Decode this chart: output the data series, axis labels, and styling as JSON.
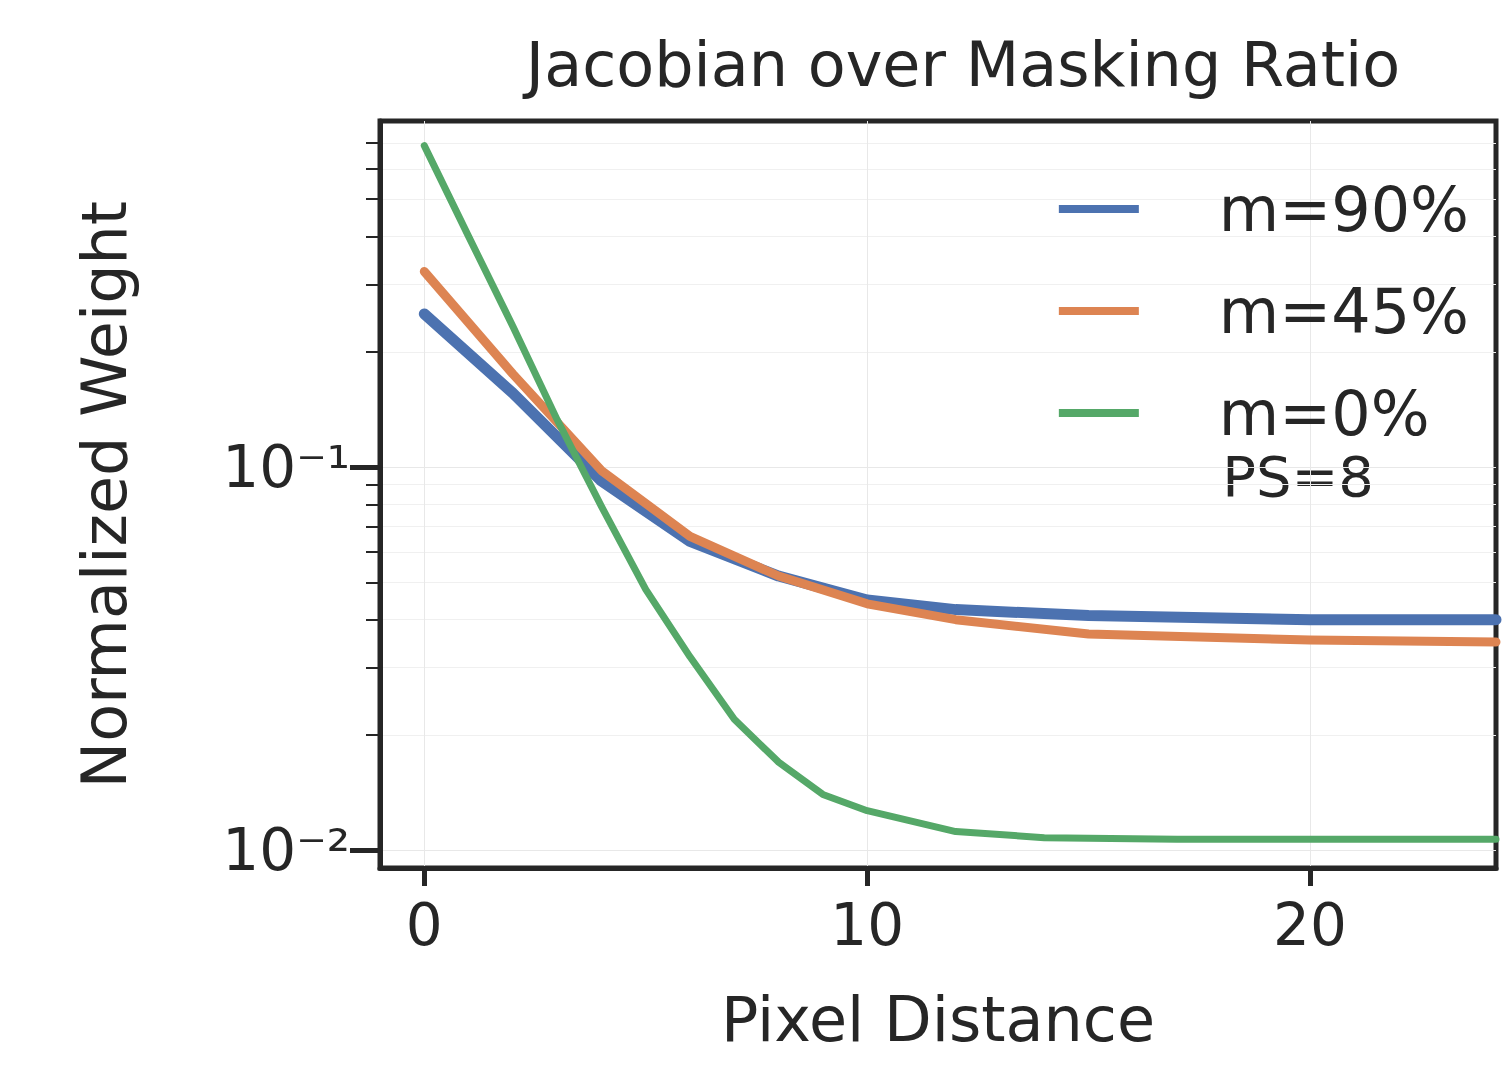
{
  "chart_data": {
    "type": "line",
    "title": "Jacobian over Masking Ratio",
    "xlabel": "Pixel Distance",
    "ylabel": "Normalized Weight",
    "log": "y",
    "grid": true,
    "legend": "top right",
    "line_style": "solid",
    "marker": "none",
    "xlim": [
      -1,
      24.2
    ],
    "xticks": [
      0,
      10,
      20
    ],
    "ylim": [
      0.009,
      0.8
    ],
    "yticks": [
      {
        "value": 0.01,
        "label": "10⁻²"
      },
      {
        "value": 0.1,
        "label": "10⁻¹"
      }
    ],
    "annotations": [
      "PS=8"
    ],
    "series": [
      {
        "name": "m=90%",
        "color": "#4c72b0",
        "x": [
          0,
          2,
          4,
          6,
          8,
          10,
          12,
          15,
          20,
          24.2
        ],
        "values": [
          0.251,
          0.156,
          0.092,
          0.064,
          0.052,
          0.045,
          0.0425,
          0.041,
          0.04,
          0.04
        ]
      },
      {
        "name": "m=45%",
        "color": "#dd8452",
        "x": [
          0,
          2,
          4,
          6,
          8,
          10,
          12,
          15,
          20,
          24.2
        ],
        "values": [
          0.324,
          0.175,
          0.098,
          0.066,
          0.052,
          0.044,
          0.04,
          0.0367,
          0.0354,
          0.035
        ]
      },
      {
        "name": "m=0%",
        "color": "#55a868",
        "x": [
          0,
          1,
          2,
          3,
          4,
          5,
          6,
          7,
          8,
          9,
          10,
          12,
          14,
          17,
          24.2
        ],
        "values": [
          0.69,
          0.4,
          0.233,
          0.133,
          0.079,
          0.048,
          0.032,
          0.022,
          0.017,
          0.014,
          0.0127,
          0.0112,
          0.0108,
          0.0107,
          0.0107
        ]
      }
    ]
  }
}
